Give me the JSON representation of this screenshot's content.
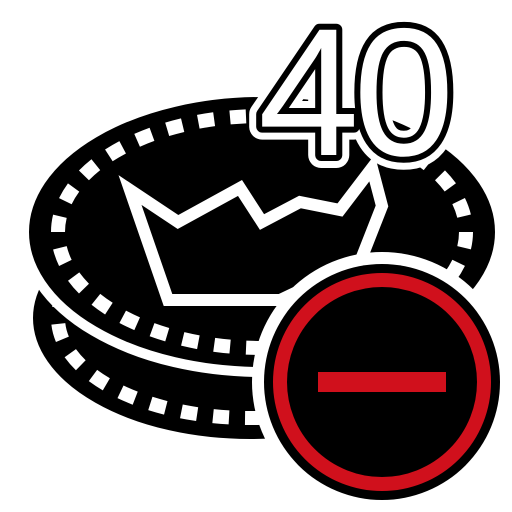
{
  "icon": {
    "name": "coin-remove-icon",
    "count_label": "40",
    "badge": "minus-icon"
  },
  "colors": {
    "ink": "#000000",
    "paper": "#ffffff",
    "accent": "#d0101c"
  }
}
